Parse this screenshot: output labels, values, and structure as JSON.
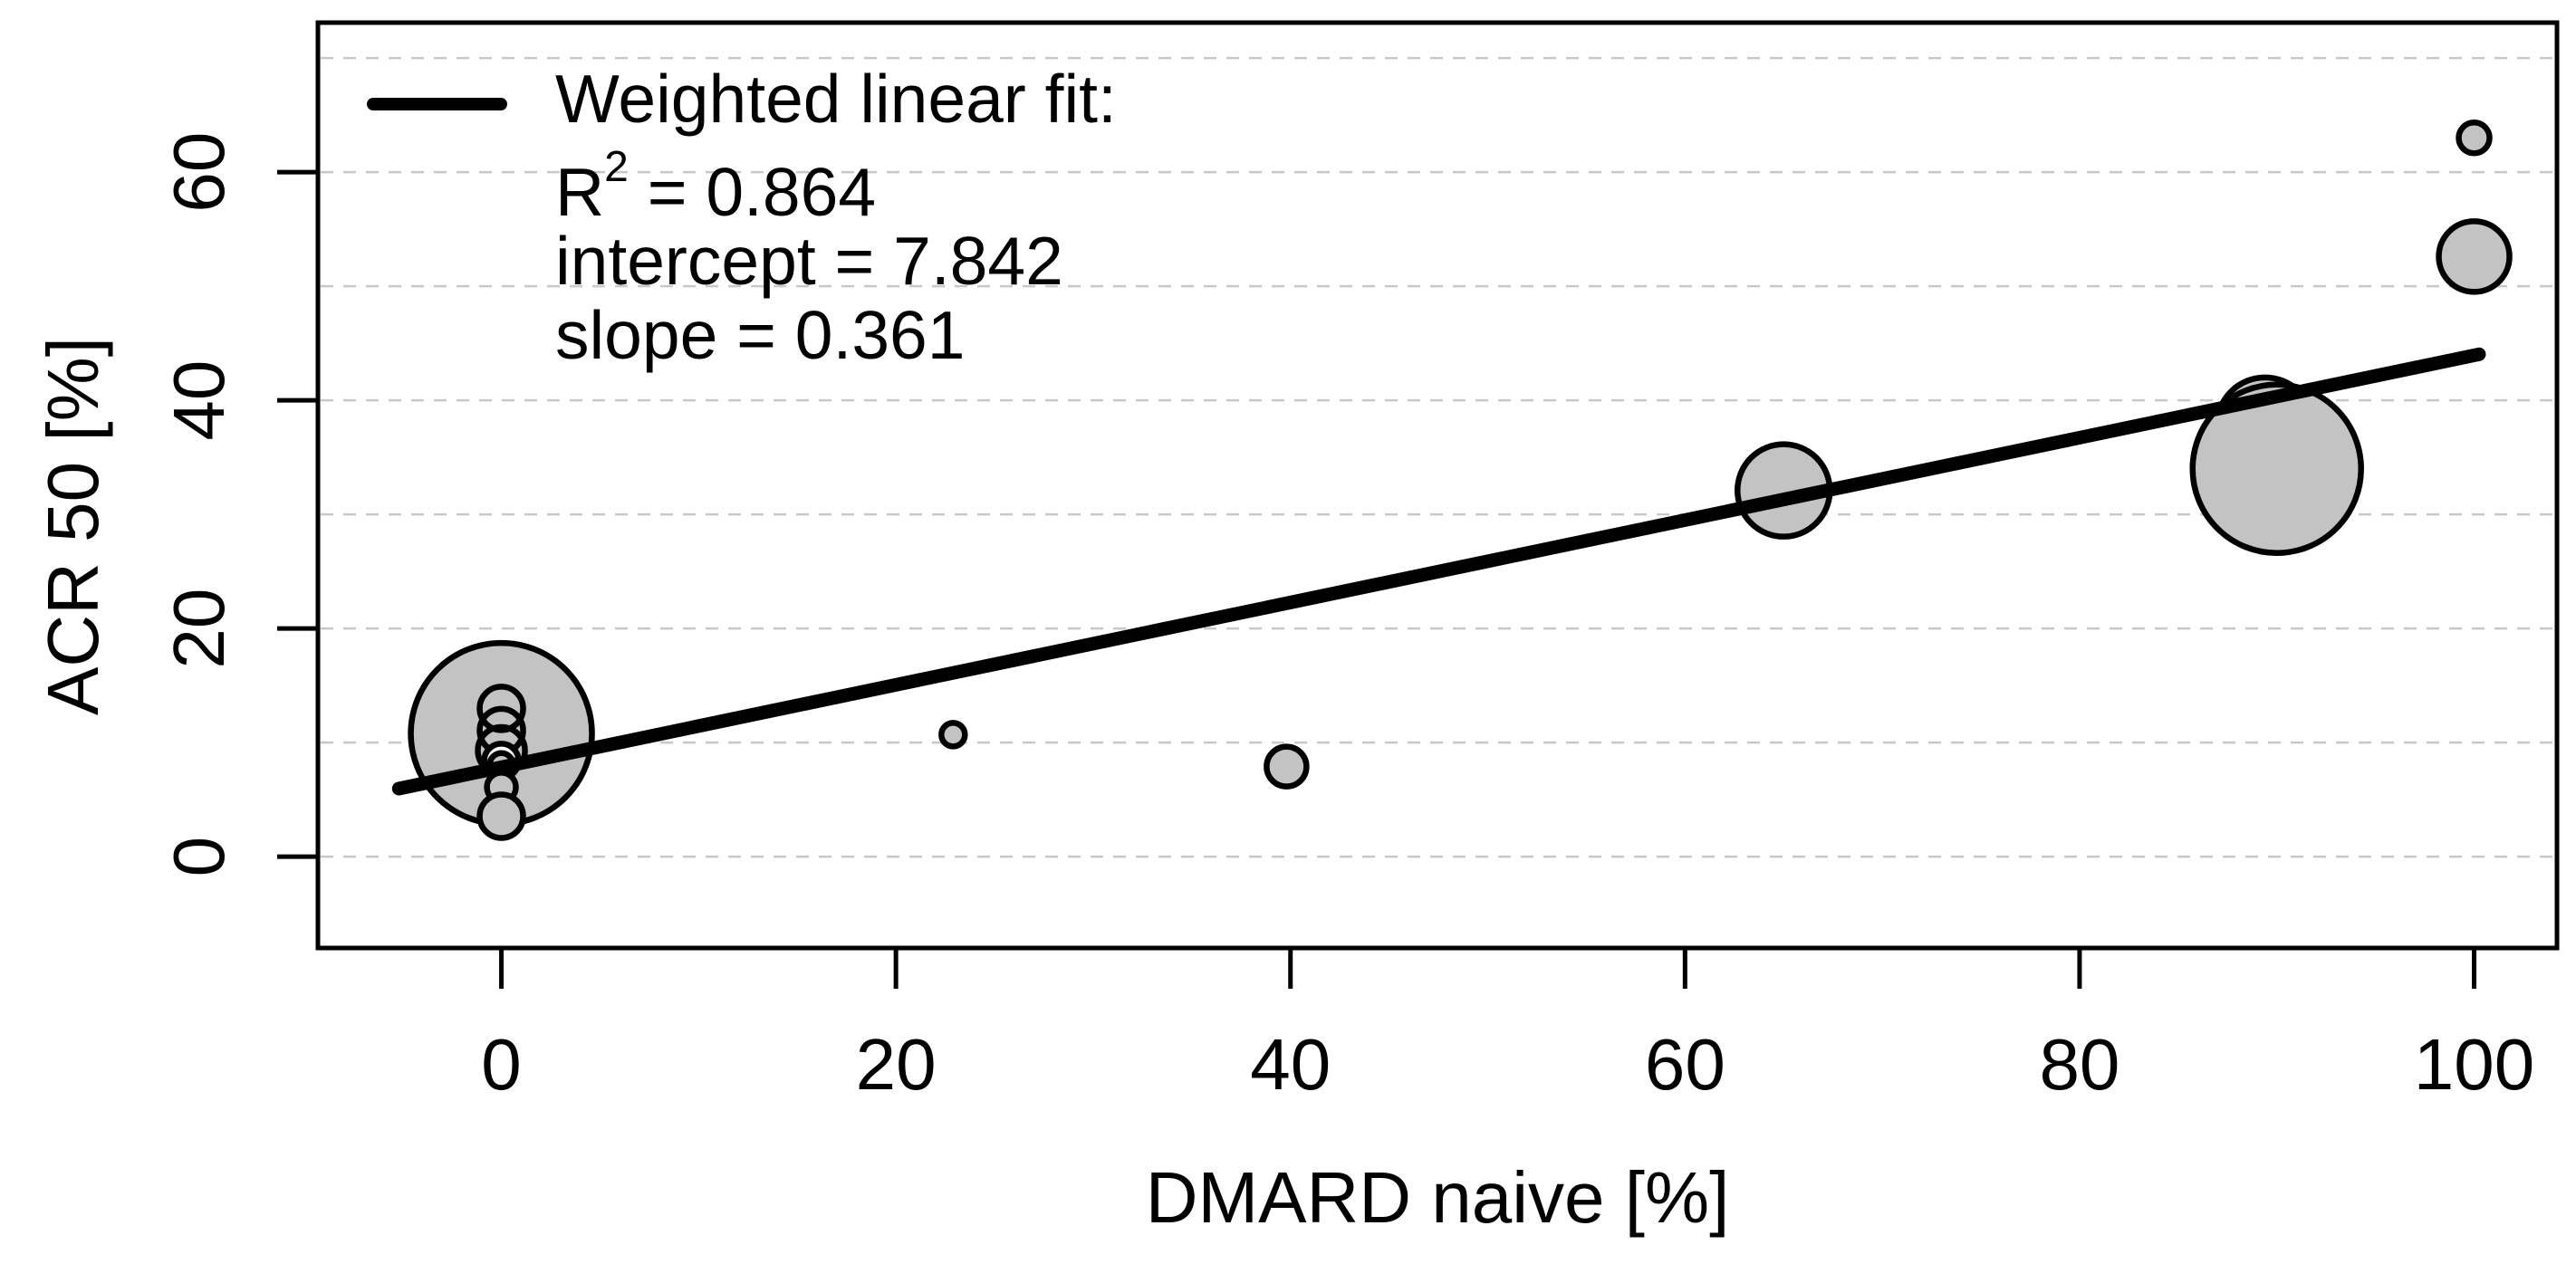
{
  "figure": {
    "background": "#ffffff",
    "legend": {
      "title": "Weighted linear fit:",
      "r2": {
        "base": "R",
        "sup": "2",
        "rest": " = 0.864"
      },
      "intercept_line": "intercept = 7.842",
      "slope_line": "slope = 0.361"
    }
  },
  "chart_data": {
    "type": "scatter",
    "subtype": "weighted-bubble-plot-with-linear-fit",
    "title": "",
    "xlabel": "DMARD naive [%]",
    "ylabel": "ACR 50 [%]",
    "xlim": [
      -9.3,
      104.2
    ],
    "ylim": [
      -8,
      73.1
    ],
    "x_ticks": [
      0,
      20,
      40,
      60,
      80,
      100
    ],
    "y_ticks": [
      0,
      20,
      40,
      60
    ],
    "gridlines_y": [
      0,
      10,
      20,
      30,
      40,
      50,
      60,
      70
    ],
    "grid": "horizontal-dashed",
    "legend_position": "top-left",
    "colors": {
      "bubble_fill": "#c3c3c3",
      "bubble_stroke": "#000000",
      "fit_line": "#000000",
      "grid": "#c8c8c8",
      "white_fill": "#ffffff"
    },
    "points": [
      {
        "x": 0,
        "y": 10.8,
        "r": 100,
        "fill": "gray"
      },
      {
        "x": 0,
        "y": 13.0,
        "r": 24,
        "fill": "none"
      },
      {
        "x": 0,
        "y": 11.05,
        "r": 24,
        "fill": "none"
      },
      {
        "x": 0,
        "y": 9.3,
        "r": 26,
        "fill": "none"
      },
      {
        "x": 0,
        "y": 8.4,
        "r": 19,
        "fill": "white"
      },
      {
        "x": 0,
        "y": 8.05,
        "r": 13,
        "fill": "gray"
      },
      {
        "x": 0,
        "y": 6.1,
        "r": 16,
        "fill": "gray"
      },
      {
        "x": 0,
        "y": 3.55,
        "r": 24,
        "fill": "gray"
      },
      {
        "x": 22.9,
        "y": 10.7,
        "r": 13,
        "fill": "gray"
      },
      {
        "x": 39.8,
        "y": 7.9,
        "r": 22,
        "fill": "gray"
      },
      {
        "x": 65,
        "y": 32.1,
        "r": 51,
        "fill": "gray"
      },
      {
        "x": 89.4,
        "y": 37.8,
        "r": 53,
        "fill": "gray"
      },
      {
        "x": 90,
        "y": 34.0,
        "r": 93,
        "fill": "gray"
      },
      {
        "x": 100,
        "y": 63.0,
        "r": 17,
        "fill": "gray"
      },
      {
        "x": 100,
        "y": 52.6,
        "r": 39,
        "fill": "gray"
      }
    ],
    "fit": {
      "label": "Weighted linear fit:",
      "r2": 0.864,
      "intercept": 7.842,
      "slope": 0.361,
      "x_from": -5.2,
      "x_to": 100.25,
      "line_width": 15
    }
  }
}
